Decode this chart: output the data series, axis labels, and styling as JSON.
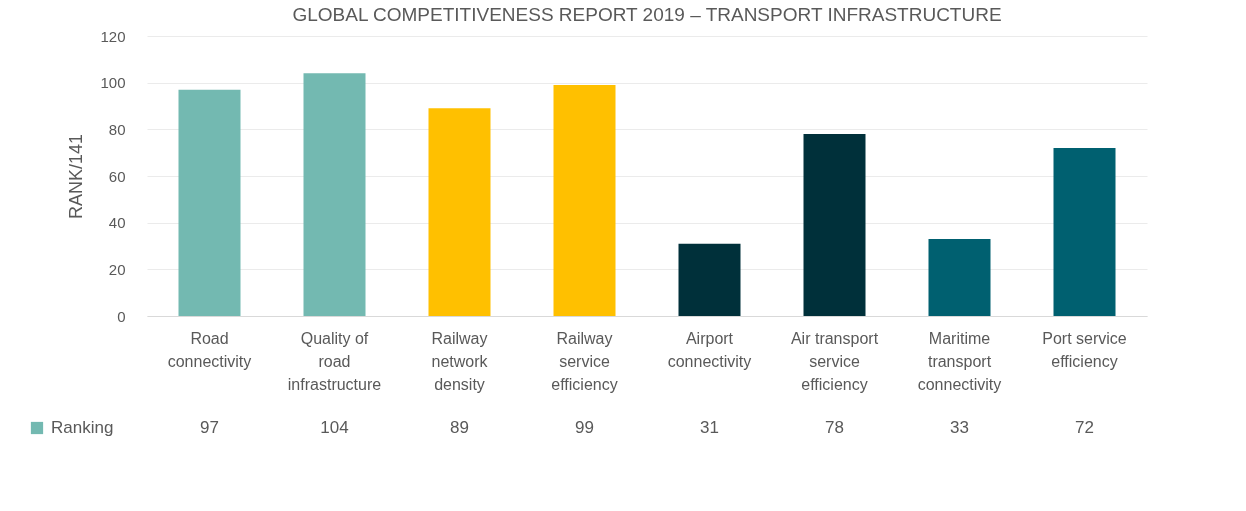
{
  "chart_data": {
    "type": "bar",
    "title": "GLOBAL COMPETITIVENESS REPORT 2019 – TRANSPORT INFRASTRUCTURE",
    "ylabel": "RANK/141",
    "categories": [
      "Road connectivity",
      "Quality of road infrastructure",
      "Railway network density",
      "Railway service efficiency",
      "Airport connectivity",
      "Air transport service efficiency",
      "Maritime transport connectivity",
      "Port service efficiency"
    ],
    "series": [
      {
        "name": "Ranking",
        "values": [
          97,
          104,
          89,
          99,
          31,
          78,
          33,
          72
        ]
      }
    ],
    "colors": [
      "#73b9b1",
      "#73b9b1",
      "#ffc000",
      "#ffc000",
      "#00303a",
      "#00303a",
      "#006070",
      "#006070"
    ],
    "ylim": [
      0,
      120
    ],
    "yticks": [
      0,
      20,
      40,
      60,
      80,
      100,
      120
    ],
    "grid": "y",
    "legend": "bottom left",
    "data_labels": true
  }
}
